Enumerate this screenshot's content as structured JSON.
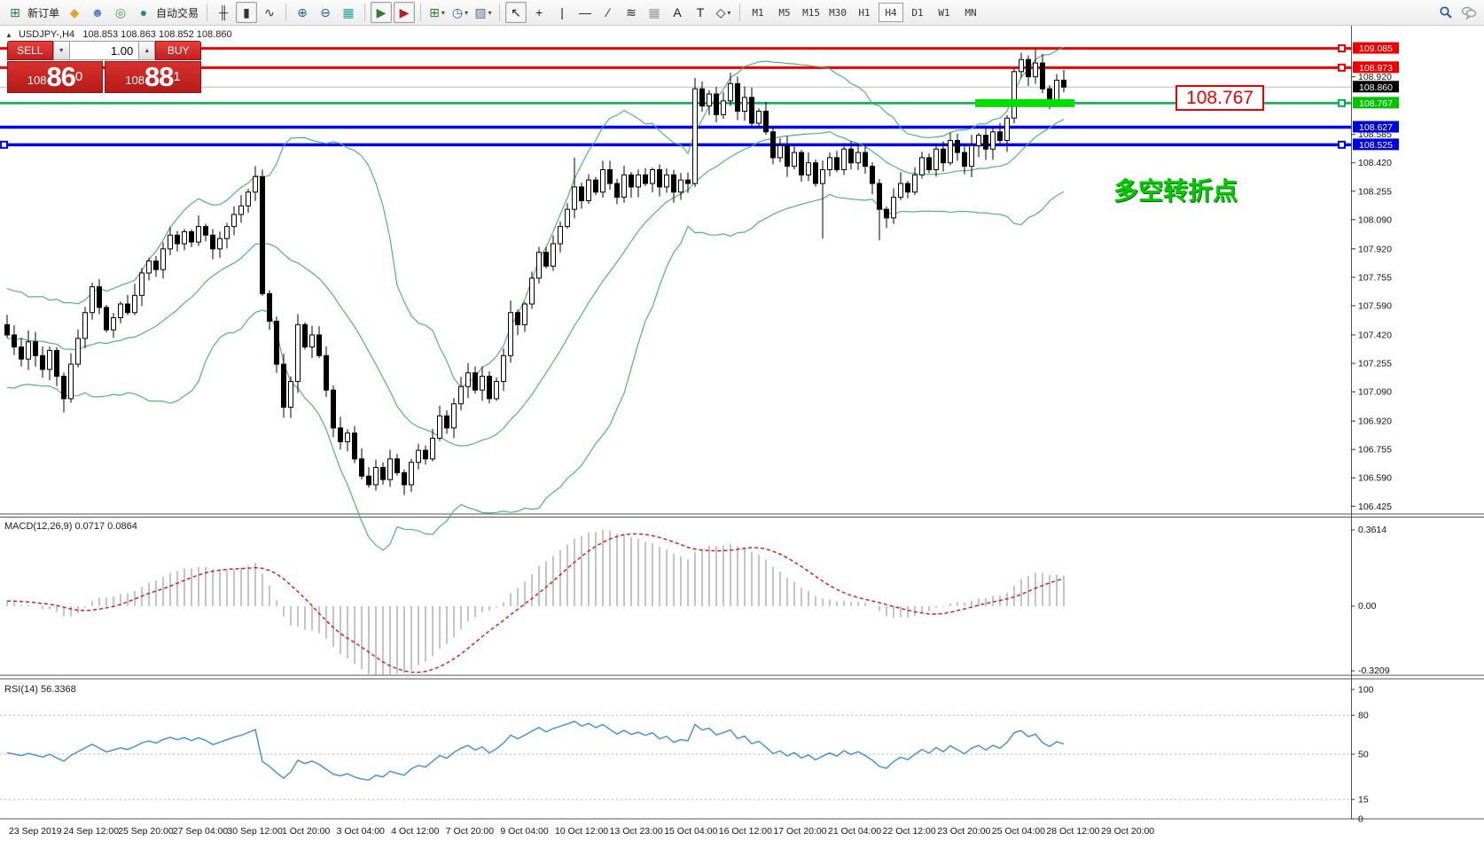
{
  "toolbar": {
    "new_order_label": "新订单",
    "autotrade_label": "自动交易",
    "icon_groups": [
      {
        "items": [
          {
            "name": "new-order-icon",
            "glyph": "⊞",
            "color": "#2e7d32",
            "label_key": "new_order"
          },
          {
            "name": "eraser-icon",
            "glyph": "◆",
            "color": "#dba728"
          },
          {
            "name": "profile-icon",
            "glyph": "☻",
            "color": "#5585c4"
          },
          {
            "name": "signals-icon",
            "glyph": "◎",
            "color": "#3fa23f"
          },
          {
            "name": "autotrade-icon",
            "glyph": "●",
            "color": "#1e8e86",
            "label_key": "autotrade"
          }
        ]
      },
      {
        "items": [
          {
            "name": "bars-chart-icon",
            "glyph": "╫",
            "color": "#333333"
          },
          {
            "name": "candles-chart-icon",
            "glyph": "▮",
            "color": "#333333",
            "selected": true
          },
          {
            "name": "line-chart-icon",
            "glyph": "∿",
            "color": "#333333"
          }
        ]
      },
      {
        "items": [
          {
            "name": "zoom-in-icon",
            "glyph": "⊕",
            "color": "#1663b6"
          },
          {
            "name": "zoom-out-icon",
            "glyph": "⊖",
            "color": "#1663b6"
          },
          {
            "name": "tile-windows-icon",
            "glyph": "▦",
            "color": "#2aa198"
          }
        ]
      },
      {
        "items": [
          {
            "name": "chart-shift-icon",
            "glyph": "▶",
            "color": "#2e7d32",
            "selected": true
          },
          {
            "name": "auto-scroll-icon",
            "glyph": "▶",
            "color": "#b22222",
            "selected": true
          }
        ]
      },
      {
        "items": [
          {
            "name": "new-chart-icon",
            "glyph": "⊞",
            "color": "#2e7d32",
            "caret": true
          },
          {
            "name": "period-icon",
            "glyph": "◷",
            "color": "#1663b6",
            "caret": true
          },
          {
            "name": "template-icon",
            "glyph": "▨",
            "color": "#5a7184",
            "caret": true
          }
        ]
      },
      {
        "items": [
          {
            "name": "cursor-icon",
            "glyph": "↖",
            "color": "#222222",
            "selected": true
          },
          {
            "name": "crosshair-icon",
            "glyph": "+",
            "color": "#222222"
          },
          {
            "name": "vline-icon",
            "glyph": "|",
            "color": "#222222"
          },
          {
            "name": "hline-icon",
            "glyph": "—",
            "color": "#222222"
          },
          {
            "name": "trendline-icon",
            "glyph": "∕",
            "color": "#222222"
          },
          {
            "name": "fibonacci-icon",
            "glyph": "≋",
            "color": "#222222"
          },
          {
            "name": "grid-icon",
            "glyph": "▦",
            "color": "#999999"
          },
          {
            "name": "text-icon",
            "glyph": "A",
            "color": "#222222"
          },
          {
            "name": "label-icon",
            "glyph": "T",
            "color": "#222222"
          },
          {
            "name": "shapes-icon",
            "glyph": "◇",
            "color": "#222222",
            "caret": true
          }
        ]
      }
    ],
    "timeframes": [
      "M1",
      "M5",
      "M15",
      "M30",
      "H1",
      "H4",
      "D1",
      "W1",
      "MN"
    ],
    "active_timeframe": "H4"
  },
  "header": {
    "collapse_arrow": "▲",
    "symbol": "USDJPY-,H4",
    "ohlc": "108.853 108.863 108.852 108.860"
  },
  "one_click": {
    "sell_label": "SELL",
    "buy_label": "BUY",
    "volume": "1.00",
    "down_glyph": "▼",
    "up_glyph": "▲",
    "sell_small": "108",
    "sell_big": "86",
    "sell_sup": "0",
    "buy_small": "108",
    "buy_big": "88",
    "buy_sup": "1"
  },
  "panels": {
    "macd_label": "MACD(12,26,9) 0.0717 0.0864",
    "rsi_label": "RSI(14) 56.3368"
  },
  "annotations": {
    "price_box": "108.767",
    "cn_text": "多空转折点"
  },
  "axis": {
    "plain_ticks": [
      108.92,
      108.585,
      108.42,
      108.255,
      108.09,
      107.92,
      107.755,
      107.59,
      107.42,
      107.255,
      107.09,
      106.92,
      106.755,
      106.59,
      106.425
    ],
    "badges": [
      {
        "price": 109.085,
        "bg": "#ee0000",
        "fg": "#ffffff"
      },
      {
        "price": 108.973,
        "bg": "#ee0000",
        "fg": "#ffffff"
      },
      {
        "price": 108.86,
        "bg": "#000000",
        "fg": "#ffffff"
      },
      {
        "price": 108.767,
        "bg": "#00c400",
        "fg": "#ffffff"
      },
      {
        "price": 108.627,
        "bg": "#0000dd",
        "fg": "#ffffff"
      },
      {
        "price": 108.525,
        "bg": "#0000dd",
        "fg": "#ffffff"
      }
    ],
    "macd_ticks": [
      "0.3614",
      "0.00",
      "-0.3209"
    ],
    "rsi_ticks": [
      100,
      80,
      50,
      15,
      0
    ],
    "rsi_dashed_levels": [
      80,
      50,
      15
    ]
  },
  "time_labels": [
    "23 Sep 2019",
    "24 Sep 12:00",
    "25 Sep 20:00",
    "27 Sep 04:00",
    "30 Sep 12:00",
    "1 Oct 20:00",
    "3 Oct 04:00",
    "4 Oct 12:00",
    "7 Oct 20:00",
    "9 Oct 04:00",
    "10 Oct 12:00",
    "13 Oct 23:00",
    "15 Oct 04:00",
    "16 Oct 12:00",
    "17 Oct 20:00",
    "21 Oct 04:00",
    "22 Oct 12:00",
    "23 Oct 20:00",
    "25 Oct 04:00",
    "28 Oct 12:00",
    "29 Oct 20:00"
  ],
  "chart_data": {
    "type": "candlestick",
    "symbol": "USDJPY",
    "timeframe": "H4",
    "title": "USDJPY-,H4",
    "last_ohlc": {
      "open": 108.853,
      "high": 108.863,
      "low": 108.852,
      "close": 108.86
    },
    "price_axis_range": [
      106.38,
      109.16
    ],
    "current_price": 108.86,
    "first_open": 107.48,
    "pre_closes": [
      107.3,
      107.52,
      107.18,
      107.6,
      107.35,
      107.25,
      107.55,
      107.3,
      107.62,
      107.28,
      107.45,
      107.15,
      107.5,
      107.33,
      107.58,
      107.27,
      107.49,
      107.24,
      107.56,
      107.4
    ],
    "closes": [
      107.42,
      107.35,
      107.28,
      107.38,
      107.3,
      107.22,
      107.33,
      107.18,
      107.05,
      107.25,
      107.4,
      107.55,
      107.7,
      107.58,
      107.45,
      107.52,
      107.6,
      107.55,
      107.65,
      107.78,
      107.85,
      107.8,
      107.92,
      108.0,
      107.95,
      108.02,
      107.96,
      108.05,
      108.0,
      107.92,
      107.98,
      108.05,
      108.12,
      108.17,
      108.25,
      108.34,
      107.66,
      107.5,
      107.25,
      107.0,
      107.15,
      107.48,
      107.35,
      107.42,
      107.3,
      107.1,
      106.88,
      106.8,
      106.85,
      106.7,
      106.6,
      106.55,
      106.65,
      106.58,
      106.7,
      106.62,
      106.55,
      106.68,
      106.75,
      106.7,
      106.82,
      106.95,
      106.88,
      107.02,
      107.12,
      107.2,
      107.1,
      107.18,
      107.05,
      107.15,
      107.3,
      107.55,
      107.48,
      107.6,
      107.75,
      107.9,
      107.82,
      107.95,
      108.05,
      108.15,
      108.28,
      108.2,
      108.32,
      108.25,
      108.38,
      108.3,
      108.22,
      108.35,
      108.28,
      108.35,
      108.3,
      108.38,
      108.28,
      108.35,
      108.25,
      108.32,
      108.3,
      108.85,
      108.75,
      108.82,
      108.7,
      108.78,
      108.88,
      108.72,
      108.8,
      108.65,
      108.72,
      108.6,
      108.45,
      108.52,
      108.4,
      108.48,
      108.35,
      108.42,
      108.3,
      108.38,
      108.45,
      108.38,
      108.5,
      108.42,
      108.48,
      108.4,
      108.3,
      108.15,
      108.1,
      108.22,
      108.3,
      108.25,
      108.35,
      108.45,
      108.38,
      108.5,
      108.42,
      108.55,
      108.48,
      108.4,
      108.52,
      108.58,
      108.5,
      108.6,
      108.55,
      108.68,
      108.95,
      109.02,
      108.92,
      109.0,
      108.85,
      108.78,
      108.9,
      108.86
    ],
    "wick_overrides": {
      "8": {
        "low": 106.97
      },
      "36": {
        "high": 108.38
      },
      "71": {
        "high": 107.62
      },
      "80": {
        "high": 108.45
      },
      "97": {
        "low": 108.28
      },
      "115": {
        "low": 107.98
      },
      "123": {
        "low": 107.97
      },
      "143": {
        "high": 109.06
      },
      "145": {
        "high": 109.08
      }
    },
    "levels": [
      {
        "price": 109.085,
        "color": "#f00000",
        "width": 3,
        "marker": true
      },
      {
        "price": 108.973,
        "color": "#f00000",
        "width": 3,
        "marker": true
      },
      {
        "price": 108.767,
        "color": "#00b050",
        "width": 2.5,
        "marker": true
      },
      {
        "price": 108.627,
        "color": "#0000ff",
        "width": 3.5,
        "marker": false
      },
      {
        "price": 108.525,
        "color": "#0000ff",
        "width": 3.5,
        "marker": true
      }
    ],
    "highlight_bar": {
      "price": 108.767,
      "from_bar": 137,
      "to_bar": 150,
      "color": "#00dd00",
      "thickness": 9
    },
    "indicators": {
      "bollinger": {
        "period": 20,
        "deviation": 2,
        "color": "#3CB371"
      },
      "macd": {
        "fast": 12,
        "slow": 26,
        "signal": 9,
        "current": 0.0717,
        "signal_current": 0.0864,
        "axis_max": 0.3614,
        "axis_min": -0.3209,
        "hist_color": "#9e9e9e",
        "signal_color": "#e01010"
      },
      "rsi": {
        "period": 14,
        "current": 56.3368,
        "color": "#3c8ddc",
        "levels": [
          80,
          50,
          15
        ]
      }
    }
  }
}
